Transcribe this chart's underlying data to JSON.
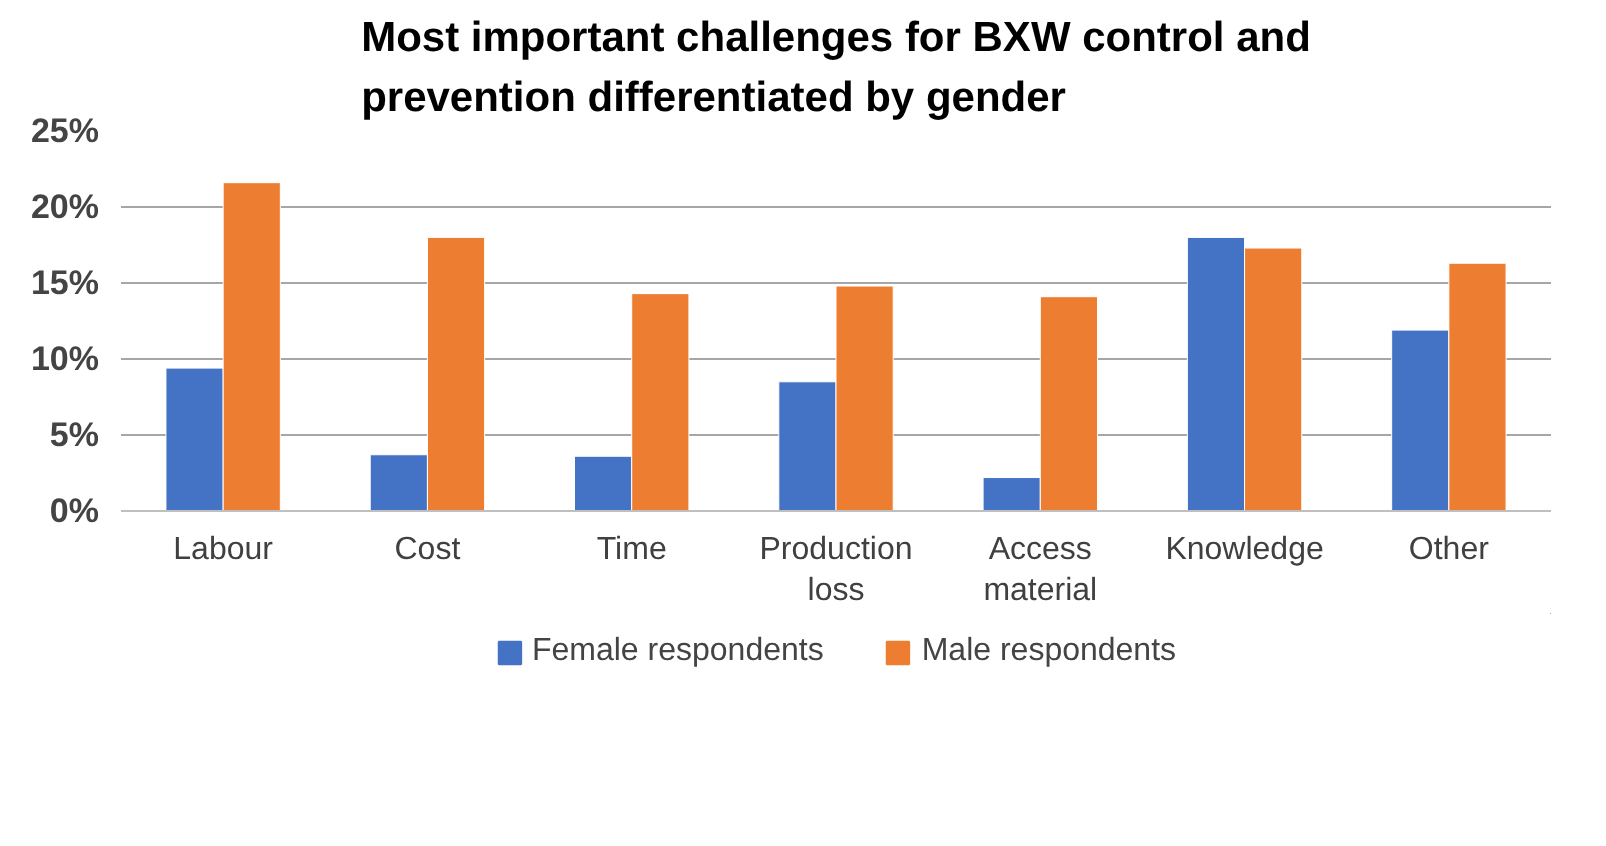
{
  "chart_data": {
    "type": "bar",
    "title": "Most important challenges for BXW control and\nprevention differentiated by gender",
    "categories": [
      "Labour",
      "Cost",
      "Time",
      "Production\nloss",
      "Access\nmaterial",
      "Knowledge",
      "Other"
    ],
    "series": [
      {
        "name": "Female respondents",
        "color": "#4472c4",
        "values": [
          9.4,
          3.7,
          3.6,
          8.5,
          2.2,
          18.0,
          11.9
        ]
      },
      {
        "name": "Male respondents",
        "color": "#ed7d31",
        "values": [
          21.6,
          18.0,
          14.3,
          14.8,
          14.1,
          17.3,
          16.3
        ]
      }
    ],
    "ylim": [
      0,
      25
    ],
    "yticks": [
      {
        "value": 0,
        "label": "0%"
      },
      {
        "value": 5,
        "label": "5%"
      },
      {
        "value": 10,
        "label": "10%"
      },
      {
        "value": 15,
        "label": "15%"
      },
      {
        "value": 20,
        "label": "20%"
      },
      {
        "value": 25,
        "label": "25%"
      }
    ],
    "grid": "y",
    "legend": "bottom"
  }
}
